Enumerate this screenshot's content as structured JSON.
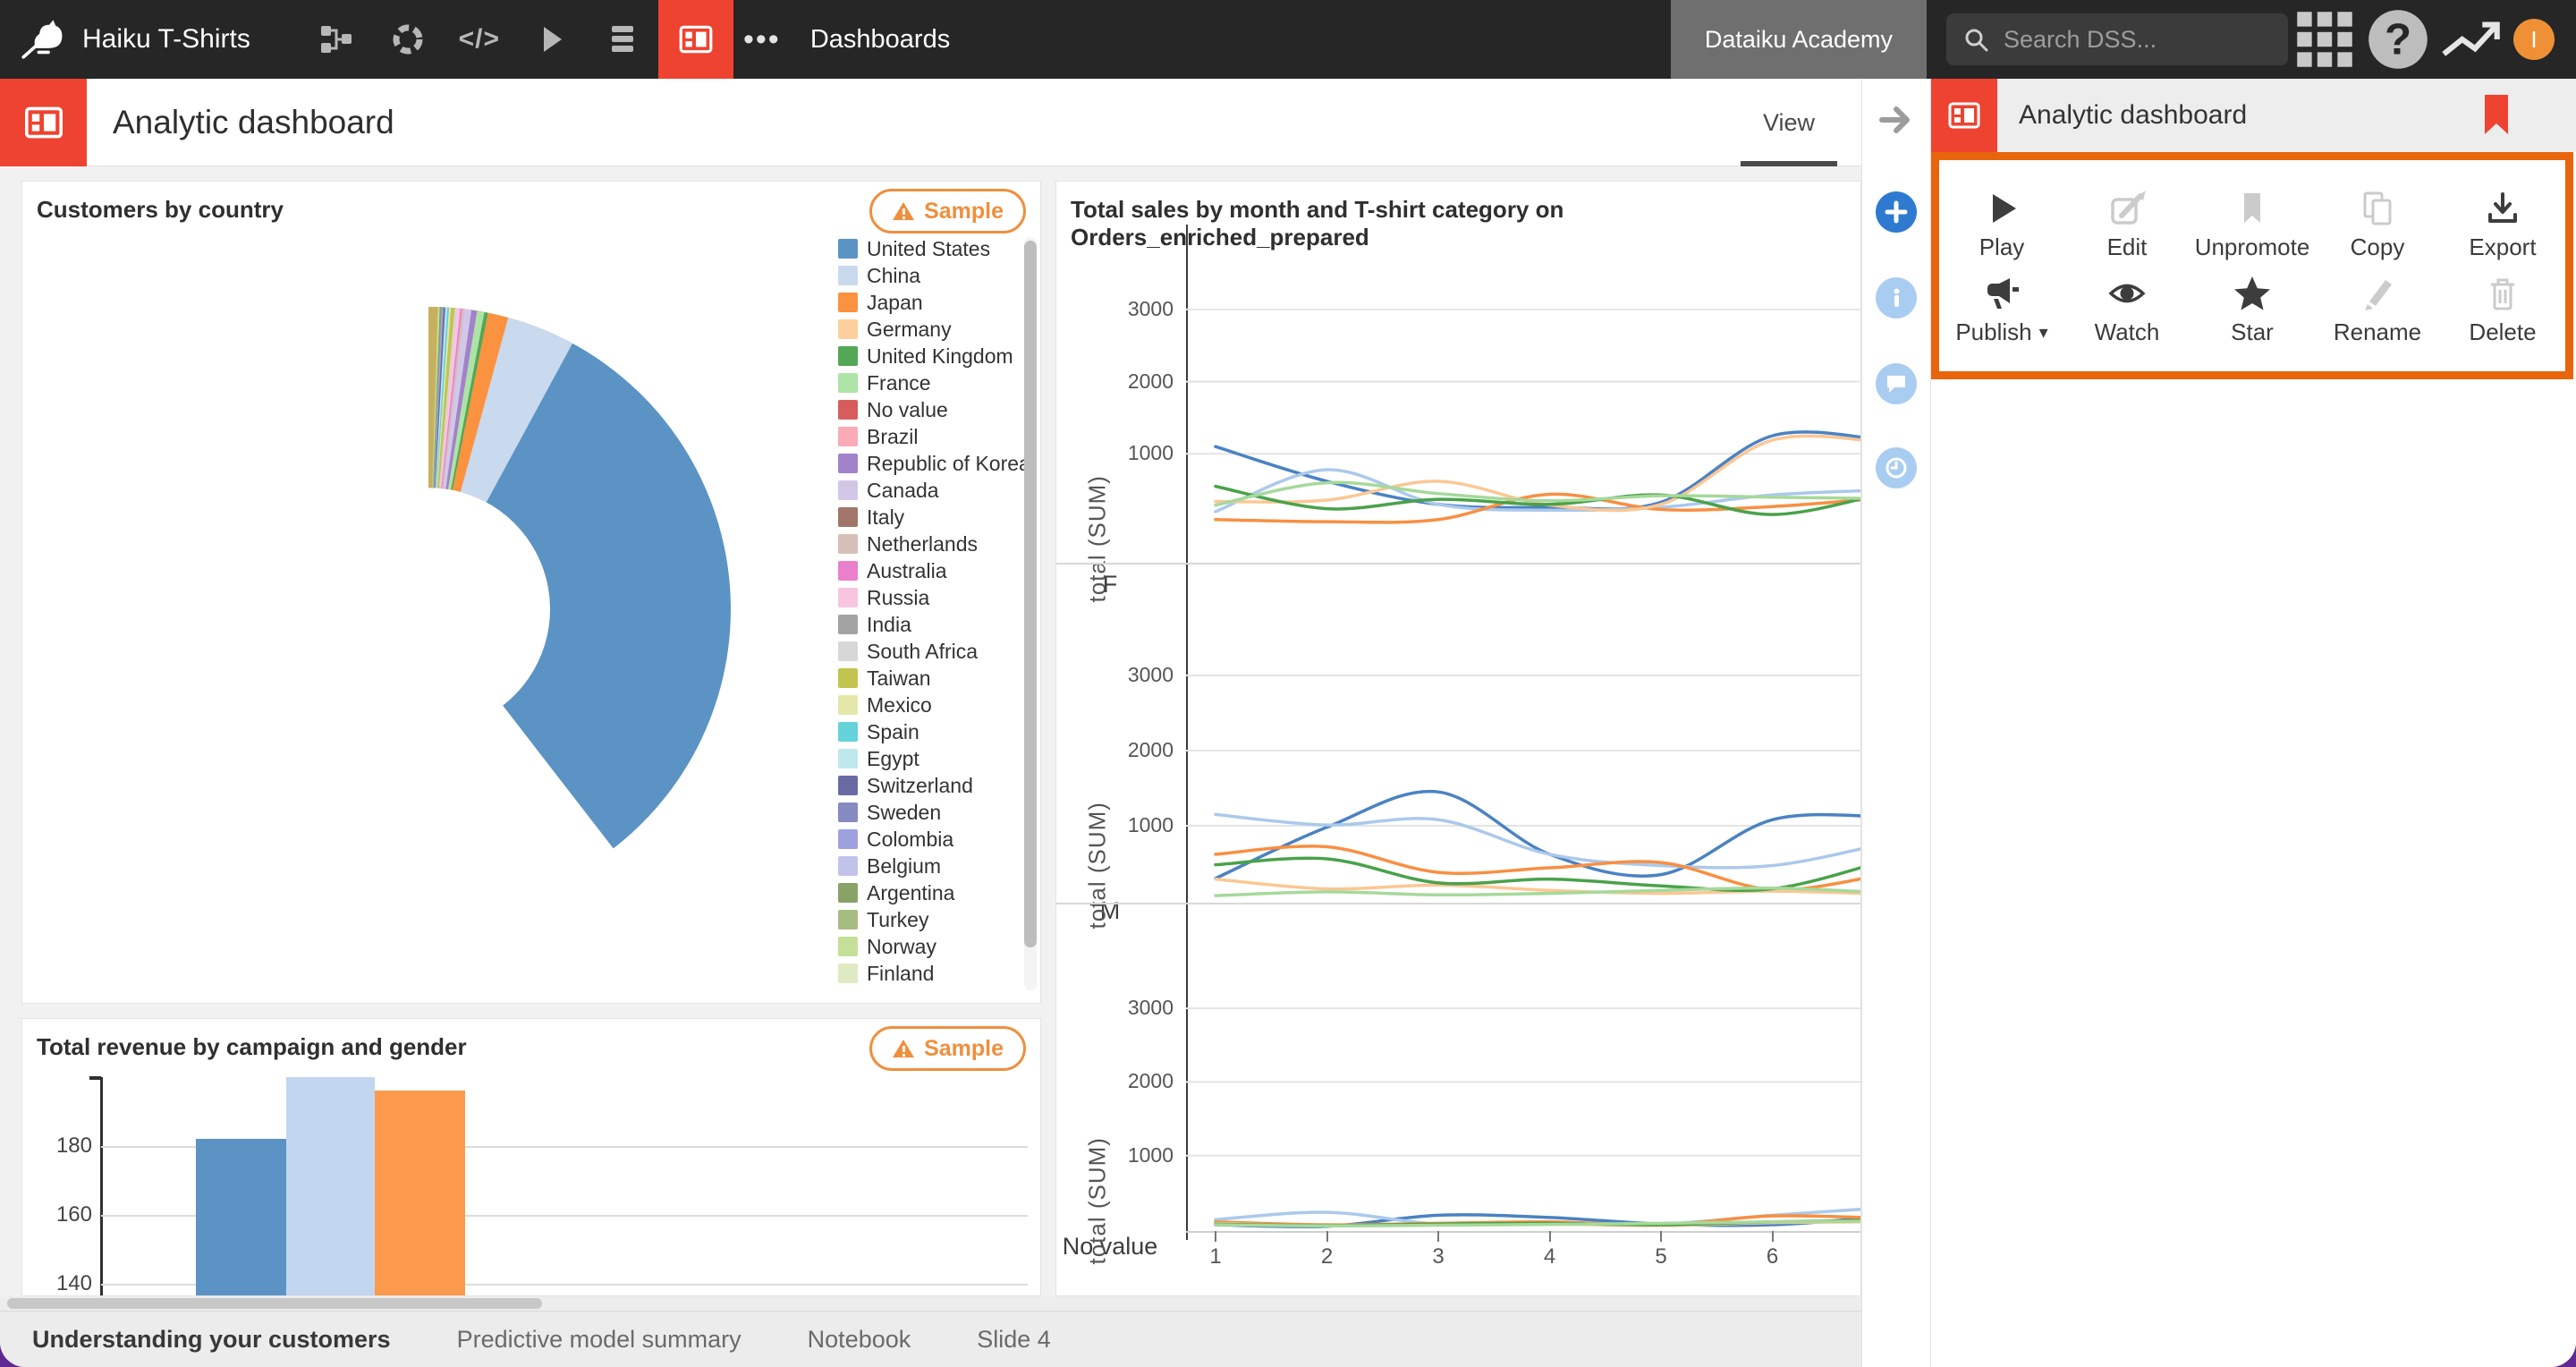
{
  "topbar": {
    "project": "Haiku T-Shirts",
    "section": "Dashboards",
    "academy_label": "Dataiku Academy",
    "search_placeholder": "Search DSS...",
    "avatar_initial": "I"
  },
  "header": {
    "title": "Analytic dashboard",
    "active_tab": "View"
  },
  "panel": {
    "title": "Analytic dashboard",
    "actions": [
      [
        {
          "label": "Play",
          "icon": "play",
          "tone": "dark"
        },
        {
          "label": "Edit",
          "icon": "edit",
          "tone": "light"
        },
        {
          "label": "Unpromote",
          "icon": "bookmark",
          "tone": "light"
        },
        {
          "label": "Copy",
          "icon": "copy",
          "tone": "light"
        },
        {
          "label": "Export",
          "icon": "export",
          "tone": "dark"
        }
      ],
      [
        {
          "label": "Publish",
          "icon": "megaphone",
          "tone": "dark",
          "caret": true
        },
        {
          "label": "Watch",
          "icon": "eye",
          "tone": "dark"
        },
        {
          "label": "Star",
          "icon": "star",
          "tone": "dark"
        },
        {
          "label": "Rename",
          "icon": "pencil",
          "tone": "light"
        },
        {
          "label": "Delete",
          "icon": "trash",
          "tone": "light"
        }
      ]
    ]
  },
  "badges": {
    "sample_label": "Sample"
  },
  "bottom_tabs": [
    {
      "label": "Understanding your customers",
      "active": true
    },
    {
      "label": "Predictive model summary",
      "active": false
    },
    {
      "label": "Notebook",
      "active": false
    },
    {
      "label": "Slide 4",
      "active": false
    }
  ],
  "colors": {
    "accent_red": "#ee4330",
    "highlight_orange": "#e8650c",
    "sample_orange": "#ef8f3e",
    "topbar_bg": "#262626"
  },
  "chart_data": [
    {
      "type": "pie",
      "title": "Customers by country",
      "badge": "Sample",
      "legend": [
        {
          "label": "United States",
          "color": "#5b93c4"
        },
        {
          "label": "China",
          "color": "#c9d9ee"
        },
        {
          "label": "Japan",
          "color": "#fb923f"
        },
        {
          "label": "Germany",
          "color": "#fccf9c"
        },
        {
          "label": "United Kingdom",
          "color": "#54a754"
        },
        {
          "label": "France",
          "color": "#aee3a8"
        },
        {
          "label": "No value",
          "color": "#d75d5d"
        },
        {
          "label": "Brazil",
          "color": "#fbabb5"
        },
        {
          "label": "Republic of Korea",
          "color": "#a083cb"
        },
        {
          "label": "Canada",
          "color": "#d3c7e8"
        },
        {
          "label": "Italy",
          "color": "#a1756a"
        },
        {
          "label": "Netherlands",
          "color": "#d5c0b8"
        },
        {
          "label": "Australia",
          "color": "#ea80cc"
        },
        {
          "label": "Russia",
          "color": "#f8c5df"
        },
        {
          "label": "India",
          "color": "#a3a3a3"
        },
        {
          "label": "South Africa",
          "color": "#d7d7d7"
        },
        {
          "label": "Taiwan",
          "color": "#c2c44f"
        },
        {
          "label": "Mexico",
          "color": "#e5e7aa"
        },
        {
          "label": "Spain",
          "color": "#65d2da"
        },
        {
          "label": "Egypt",
          "color": "#bfe8ed"
        },
        {
          "label": "Switzerland",
          "color": "#6a6ba3"
        },
        {
          "label": "Sweden",
          "color": "#8789c1"
        },
        {
          "label": "Colombia",
          "color": "#9fa1de"
        },
        {
          "label": "Belgium",
          "color": "#c2c3ea"
        },
        {
          "label": "Argentina",
          "color": "#89a367"
        },
        {
          "label": "Turkey",
          "color": "#a7bc81"
        },
        {
          "label": "Norway",
          "color": "#c5df98"
        },
        {
          "label": "Finland",
          "color": "#dfeac4"
        }
      ],
      "segments_pct_clockwise": [
        {
          "label": "United States",
          "color": "#5b93c4",
          "value": 40.0
        },
        {
          "label": "Other",
          "color": "#e4c36b",
          "value": 7.8
        },
        {
          "label": "China",
          "color": "#c9d9ee",
          "value": 8.0
        },
        {
          "label": "Japan",
          "color": "#fb923f",
          "value": 4.3
        },
        {
          "label": "Germany",
          "color": "#fccf9c",
          "value": 3.2
        },
        {
          "label": "United Kingdom",
          "color": "#54a754",
          "value": 3.2
        },
        {
          "label": "France",
          "color": "#aee3a8",
          "value": 3.0
        },
        {
          "label": "No value",
          "color": "#d75d5d",
          "value": 2.6
        },
        {
          "label": "Brazil",
          "color": "#fbabb5",
          "value": 2.6
        },
        {
          "label": "Republic of Korea",
          "color": "#a083cb",
          "value": 2.6
        },
        {
          "label": "Canada",
          "color": "#d3c7e8",
          "value": 2.3
        },
        {
          "label": "Italy",
          "color": "#a1756a",
          "value": 1.9
        },
        {
          "label": "Netherlands",
          "color": "#d5c0b8",
          "value": 1.9
        },
        {
          "label": "Australia",
          "color": "#ea80cc",
          "value": 1.8
        },
        {
          "label": "Russia",
          "color": "#f8c5df",
          "value": 1.7
        },
        {
          "label": "India",
          "color": "#a3a3a3",
          "value": 1.5
        },
        {
          "label": "South Africa",
          "color": "#d7d7d7",
          "value": 1.5
        },
        {
          "label": "Taiwan",
          "color": "#c2c44f",
          "value": 1.4
        },
        {
          "label": "Mexico",
          "color": "#e5e7aa",
          "value": 1.2
        },
        {
          "label": "Spain",
          "color": "#65d2da",
          "value": 1.1
        },
        {
          "label": "Egypt",
          "color": "#bfe8ed",
          "value": 1.0
        },
        {
          "label": "Switzerland",
          "color": "#6a6ba3",
          "value": 0.9
        },
        {
          "label": "Sweden",
          "color": "#8789c1",
          "value": 0.8
        },
        {
          "label": "Colombia",
          "color": "#9fa1de",
          "value": 0.8
        },
        {
          "label": "Belgium",
          "color": "#c2c3ea",
          "value": 0.7
        },
        {
          "label": "Argentina",
          "color": "#89a367",
          "value": 0.7
        },
        {
          "label": "Turkey",
          "color": "#a7bc81",
          "value": 0.6
        },
        {
          "label": "Norway",
          "color": "#c5df98",
          "value": 0.6
        },
        {
          "label": "Finland",
          "color": "#dfeac4",
          "value": 0.5
        },
        {
          "label": "Other",
          "color": "#b3a356",
          "value": 0.5
        },
        {
          "label": "Other",
          "color": "#c8b061",
          "value": 0.5
        }
      ]
    },
    {
      "type": "line",
      "title": "Total sales by month and T-shirt category on Orders_enriched_prepared",
      "x": [
        1,
        2,
        3,
        4,
        5,
        6,
        7
      ],
      "xticks": [
        1,
        2,
        3,
        4,
        5,
        6
      ],
      "ylabel": "total (SUM)",
      "yticks": [
        1000,
        2000,
        3000
      ],
      "facets": [
        {
          "name": "F",
          "series": [
            {
              "name": "blue",
              "color": "#4a82c3",
              "values": [
                1100,
                620,
                300,
                260,
                330,
                1250,
                1190
              ]
            },
            {
              "name": "light-blue",
              "color": "#abc9eb",
              "values": [
                200,
                780,
                300,
                220,
                260,
                430,
                500
              ]
            },
            {
              "name": "orange",
              "color": "#f88f42",
              "values": [
                90,
                60,
                90,
                440,
                230,
                270,
                390
              ]
            },
            {
              "name": "light-orange",
              "color": "#fbc795",
              "values": [
                340,
                360,
                620,
                290,
                300,
                1190,
                1160
              ]
            },
            {
              "name": "green",
              "color": "#4aa24a",
              "values": [
                550,
                240,
                370,
                300,
                430,
                160,
                450
              ]
            },
            {
              "name": "light-green",
              "color": "#a6d99b",
              "values": [
                290,
                600,
                450,
                350,
                420,
                400,
                380
              ]
            }
          ]
        },
        {
          "name": "M",
          "series": [
            {
              "name": "blue",
              "color": "#4a82c3",
              "values": [
                300,
                980,
                1450,
                620,
                350,
                1080,
                1120
              ]
            },
            {
              "name": "light-blue",
              "color": "#abc9eb",
              "values": [
                1150,
                1010,
                1080,
                620,
                470,
                470,
                760
              ]
            },
            {
              "name": "orange",
              "color": "#f88f42",
              "values": [
                620,
                720,
                380,
                440,
                510,
                150,
                350
              ]
            },
            {
              "name": "light-orange",
              "color": "#fbc795",
              "values": [
                290,
                160,
                210,
                140,
                100,
                130,
                90
              ]
            },
            {
              "name": "green",
              "color": "#4aa24a",
              "values": [
                480,
                560,
                240,
                290,
                200,
                160,
                530
              ]
            },
            {
              "name": "light-green",
              "color": "#a6d99b",
              "values": [
                70,
                120,
                80,
                100,
                140,
                170,
                110
              ]
            }
          ]
        },
        {
          "name": "No value",
          "series": [
            {
              "name": "blue",
              "color": "#4a82c3",
              "values": [
                60,
                40,
                190,
                160,
                70,
                60,
                170
              ]
            },
            {
              "name": "light-blue",
              "color": "#abc9eb",
              "values": [
                130,
                230,
                70,
                90,
                70,
                190,
                290
              ]
            },
            {
              "name": "orange",
              "color": "#f88f42",
              "values": [
                100,
                60,
                80,
                100,
                60,
                180,
                150
              ]
            },
            {
              "name": "light-orange",
              "color": "#fbc795",
              "values": [
                80,
                45,
                60,
                70,
                50,
                90,
                100
              ]
            },
            {
              "name": "green",
              "color": "#4aa24a",
              "values": [
                70,
                50,
                70,
                80,
                60,
                100,
                120
              ]
            },
            {
              "name": "light-green",
              "color": "#a6d99b",
              "values": [
                60,
                45,
                55,
                65,
                80,
                100,
                110
              ]
            }
          ]
        }
      ]
    },
    {
      "type": "bar",
      "title": "Total revenue by campaign and gender",
      "badge": "Sample",
      "yticks": [
        140,
        160,
        180
      ],
      "ytop_value": 200,
      "bars": [
        {
          "name": "bar-blue",
          "color": "#5b93c4",
          "value": 182
        },
        {
          "name": "bar-light-blue",
          "color": "#c3d6ef",
          "value": 200
        },
        {
          "name": "bar-orange",
          "color": "#fb9a4d",
          "value": 196
        }
      ]
    }
  ]
}
